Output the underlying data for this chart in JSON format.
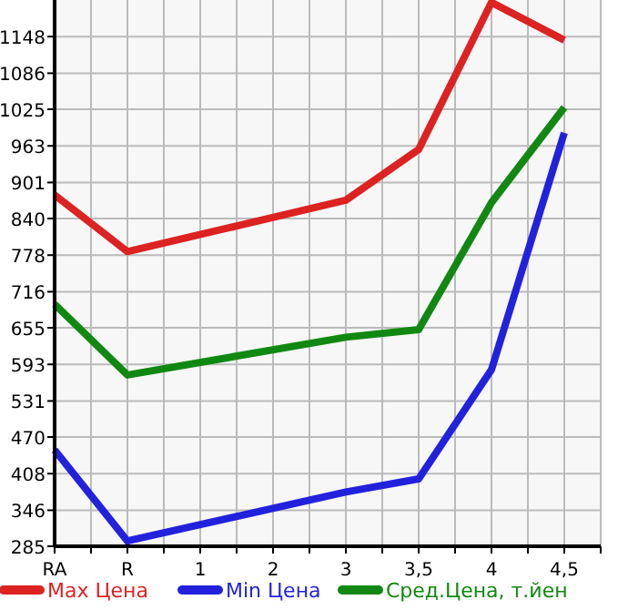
{
  "chart_data": {
    "type": "line",
    "categories": [
      "RA",
      "R",
      "1",
      "2",
      "3",
      "3,5",
      "4",
      "4,5"
    ],
    "series": [
      {
        "name": "Max Цена",
        "color": "#dd2222",
        "values": [
          880,
          784,
          null,
          null,
          871,
          957,
          1206,
          1142
        ]
      },
      {
        "name": "Min Цена",
        "color": "#2222dd",
        "values": [
          448,
          294,
          null,
          null,
          377,
          399,
          584,
          985
        ]
      },
      {
        "name": "Сред.Цена, т.йен",
        "color": "#118811",
        "values": [
          695,
          575,
          null,
          null,
          639,
          652,
          867,
          1028
        ]
      }
    ],
    "ylim": [
      285,
      1210
    ],
    "yticks": [
      285,
      346,
      408,
      470,
      531,
      593,
      655,
      716,
      778,
      840,
      901,
      963,
      1025,
      1086,
      1148
    ],
    "grid": true,
    "legend": "bottom",
    "marker": "none",
    "line_style": "solid"
  }
}
